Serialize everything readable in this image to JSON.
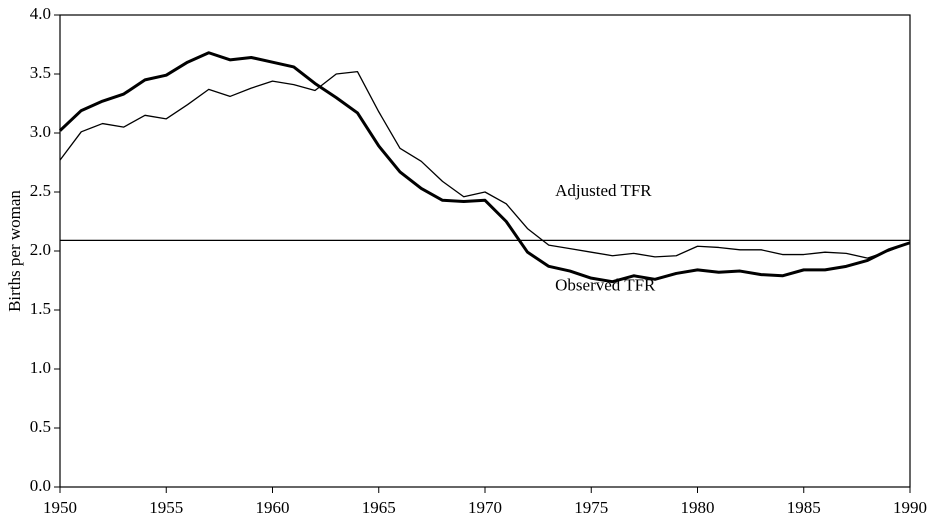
{
  "chart_data": {
    "type": "line",
    "ylabel": "Births per woman",
    "x": [
      1950,
      1951,
      1952,
      1953,
      1954,
      1955,
      1956,
      1957,
      1958,
      1959,
      1960,
      1961,
      1962,
      1963,
      1964,
      1965,
      1966,
      1967,
      1968,
      1969,
      1970,
      1971,
      1972,
      1973,
      1974,
      1975,
      1976,
      1977,
      1978,
      1979,
      1980,
      1981,
      1982,
      1983,
      1984,
      1985,
      1986,
      1987,
      1988,
      1989,
      1990
    ],
    "series": [
      {
        "name": "Adjusted TFR",
        "color": "#000000",
        "line_width": 1.3,
        "values": [
          2.77,
          3.01,
          3.08,
          3.05,
          3.15,
          3.12,
          3.24,
          3.37,
          3.31,
          3.38,
          3.44,
          3.41,
          3.36,
          3.5,
          3.52,
          3.18,
          2.87,
          2.76,
          2.59,
          2.46,
          2.5,
          2.4,
          2.19,
          2.05,
          2.02,
          1.99,
          1.96,
          1.98,
          1.95,
          1.96,
          2.04,
          2.03,
          2.01,
          2.01,
          1.97,
          1.97,
          1.99,
          1.98,
          1.94,
          2.0,
          2.07
        ]
      },
      {
        "name": "Observed TFR",
        "color": "#000000",
        "line_width": 3,
        "values": [
          3.02,
          3.19,
          3.27,
          3.33,
          3.45,
          3.49,
          3.6,
          3.68,
          3.62,
          3.64,
          3.6,
          3.56,
          3.42,
          3.3,
          3.17,
          2.89,
          2.67,
          2.53,
          2.43,
          2.42,
          2.43,
          2.25,
          1.99,
          1.87,
          1.83,
          1.77,
          1.74,
          1.79,
          1.76,
          1.81,
          1.84,
          1.82,
          1.83,
          1.8,
          1.79,
          1.84,
          1.84,
          1.87,
          1.92,
          2.01,
          2.07
        ]
      }
    ],
    "hline": 2.09,
    "xlim": [
      1950,
      1990
    ],
    "xticks": [
      1950,
      1955,
      1960,
      1965,
      1970,
      1975,
      1980,
      1985,
      1990
    ],
    "ylim": [
      0,
      4
    ],
    "yticks": [
      {
        "value": 0,
        "label": "0.0"
      },
      {
        "value": 0.5,
        "label": "0.5"
      },
      {
        "value": 1,
        "label": "1.0"
      },
      {
        "value": 1.5,
        "label": "1.5"
      },
      {
        "value": 2,
        "label": "2.0"
      },
      {
        "value": 2.5,
        "label": "2.5"
      },
      {
        "value": 3,
        "label": "3.0"
      },
      {
        "value": 3.5,
        "label": "3.5"
      },
      {
        "value": 4,
        "label": "4.0"
      }
    ],
    "grid": false
  }
}
